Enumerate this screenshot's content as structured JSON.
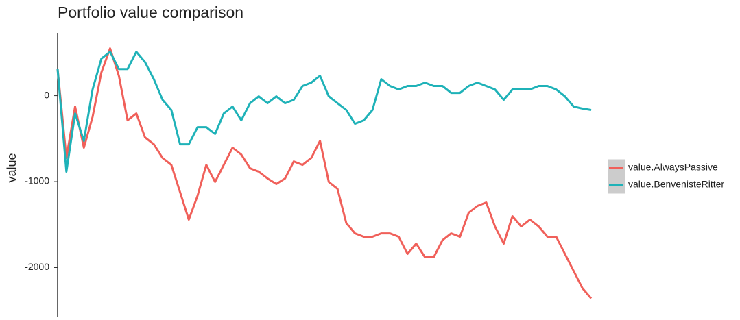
{
  "chart_data": {
    "type": "line",
    "title": "Portfolio value comparison",
    "y_label": "value",
    "ylim": [
      -2570,
      730
    ],
    "yticks": [
      -2000,
      -1000,
      0
    ],
    "series": [
      {
        "name": "value.AlwaysPassive",
        "color": "#f0605a",
        "values": [
          310,
          -725,
          -127,
          -605,
          -247,
          270,
          550,
          231,
          -287,
          -207,
          -486,
          -566,
          -725,
          -805,
          -1124,
          -1442,
          -1163,
          -805,
          -1004,
          -805,
          -605,
          -685,
          -845,
          -884,
          -964,
          -1028,
          -964,
          -765,
          -805,
          -725,
          -526,
          -1004,
          -1084,
          -1482,
          -1602,
          -1641,
          -1641,
          -1602,
          -1602,
          -1641,
          -1841,
          -1721,
          -1880,
          -1880,
          -1681,
          -1602,
          -1641,
          -1362,
          -1283,
          -1243,
          -1522,
          -1721,
          -1402,
          -1522,
          -1442,
          -1522,
          -1641,
          -1641,
          -1841,
          -2040,
          -2239,
          -2359
        ]
      },
      {
        "name": "value.BenvenisteRitter",
        "color": "#1fb2b8",
        "values": [
          310,
          -884,
          -207,
          -526,
          72,
          430,
          510,
          310,
          310,
          510,
          390,
          191,
          -48,
          -167,
          -566,
          -566,
          -367,
          -367,
          -446,
          -207,
          -127,
          -287,
          -88,
          -8,
          -88,
          -8,
          -88,
          -48,
          112,
          151,
          231,
          -8,
          -88,
          -167,
          -327,
          -287,
          -167,
          191,
          112,
          72,
          112,
          112,
          151,
          112,
          112,
          32,
          32,
          112,
          151,
          112,
          72,
          -48,
          72,
          72,
          72,
          112,
          112,
          72,
          -8,
          -127,
          -150,
          -167
        ]
      }
    ],
    "legend": "right"
  }
}
